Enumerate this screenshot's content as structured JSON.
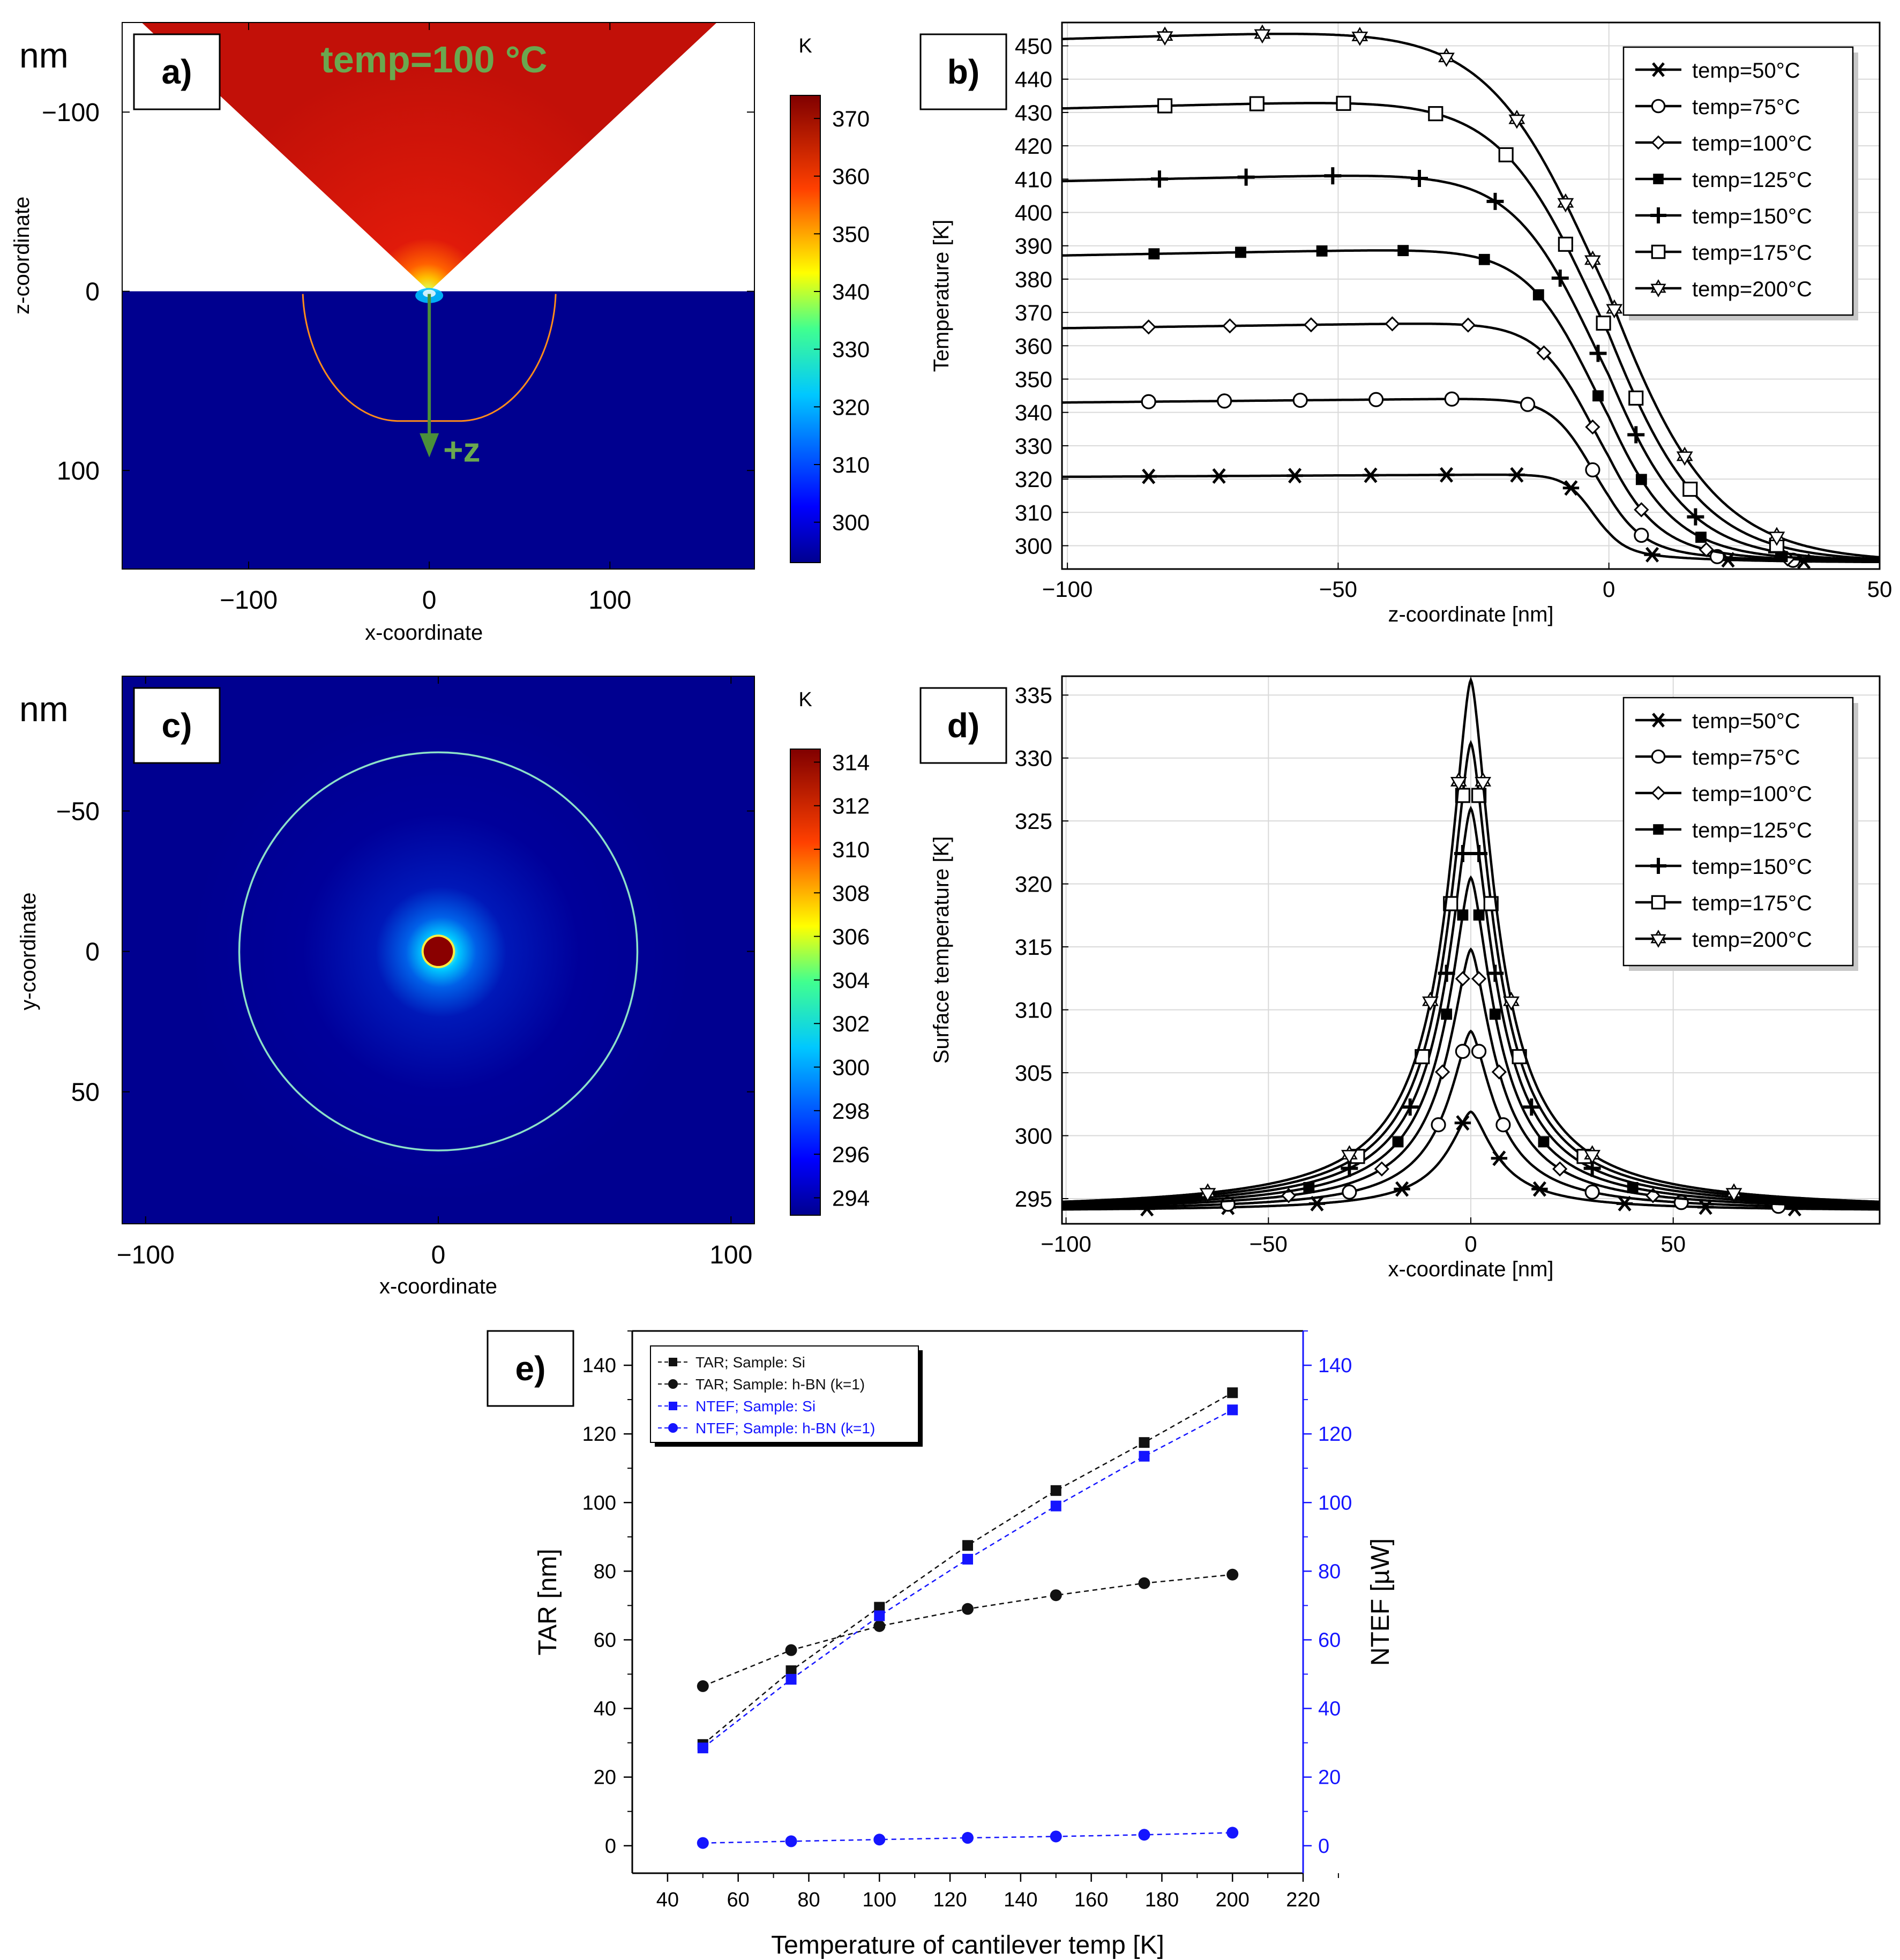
{
  "chart_data": [
    {
      "id": "a",
      "type": "heatmap",
      "panel_label": "a)",
      "unit_label": "nm",
      "annotation": "temp=100 °C",
      "arrow_label": "+z",
      "xlabel": "x-coordinate",
      "ylabel": "z-coordinate",
      "xlim": [
        -170,
        180
      ],
      "ylim": [
        -150,
        155
      ],
      "x_ticks": [
        -100,
        0,
        100
      ],
      "y_ticks": [
        -100,
        0,
        100
      ],
      "colorbar": {
        "unit": "K",
        "range": [
          293,
          374
        ],
        "ticks": [
          300,
          310,
          320,
          330,
          340,
          350,
          360,
          370
        ]
      },
      "contour_halfwidth_nm": 70,
      "contour_depth_nm": 70,
      "colors": {
        "tip": "#c81208",
        "sample": "#00008f",
        "contour": "#ff8c1a",
        "annotation": "#6aa84f",
        "arrow": "#4a8f3a"
      }
    },
    {
      "id": "b",
      "type": "line",
      "panel_label": "b)",
      "xlabel": "z-coordinate [nm]",
      "ylabel": "Temperature [K]",
      "xlim": [
        -101,
        50
      ],
      "ylim": [
        293,
        457
      ],
      "x_ticks": [
        -100,
        -50,
        0,
        50
      ],
      "y_ticks": [
        300,
        310,
        320,
        330,
        340,
        350,
        360,
        370,
        380,
        390,
        400,
        410,
        420,
        430,
        440,
        450
      ],
      "series": [
        {
          "name": "temp=50°C",
          "marker": "asterisk",
          "peak": 321.5,
          "x": [
            -85,
            -72,
            -58,
            -44,
            -30,
            -17,
            -7,
            8,
            22,
            36
          ]
        },
        {
          "name": "temp=75°C",
          "marker": "circle",
          "peak": 344.5,
          "x": [
            -85,
            -71,
            -57,
            -43,
            -29,
            -15,
            -3,
            6,
            20,
            34
          ]
        },
        {
          "name": "temp=100°C",
          "marker": "diamond",
          "peak": 367.5,
          "x": [
            -85,
            -70,
            -55,
            -40,
            -26,
            -12,
            -3,
            6,
            18,
            33
          ]
        },
        {
          "name": "temp=125°C",
          "marker": "square-filled",
          "peak": 390,
          "x": [
            -84,
            -68,
            -53,
            -38,
            -23,
            -13,
            -2,
            6,
            17,
            32
          ]
        },
        {
          "name": "temp=150°C",
          "marker": "plus",
          "peak": 413,
          "x": [
            -83,
            -67,
            -51,
            -35,
            -21,
            -9,
            -2,
            5,
            16,
            31
          ]
        },
        {
          "name": "temp=175°C",
          "marker": "square-open",
          "peak": 435.5,
          "x": [
            -82,
            -65,
            -49,
            -32,
            -19,
            -8,
            -1,
            5,
            15,
            31
          ]
        },
        {
          "name": "temp=200°C",
          "marker": "star",
          "peak": 457,
          "x": [
            -82,
            -64,
            -46,
            -30,
            -17,
            -8,
            -3,
            1,
            14,
            31
          ]
        }
      ],
      "legend_position": "top-right"
    },
    {
      "id": "c",
      "type": "heatmap",
      "panel_label": "c)",
      "unit_label": "nm",
      "xlabel": "x-coordinate",
      "ylabel": "y-coordinate",
      "xlim": [
        -108,
        108
      ],
      "ylim": [
        -98,
        97
      ],
      "x_ticks": [
        -100,
        0,
        100
      ],
      "y_ticks": [
        -50,
        0,
        50
      ],
      "colorbar": {
        "unit": "K",
        "range": [
          293.2,
          314.6
        ],
        "ticks": [
          294,
          296,
          298,
          300,
          302,
          304,
          306,
          308,
          310,
          312,
          314
        ]
      },
      "contour_radius_nm": 68,
      "hotspot_radius_nm": 5,
      "colors": {
        "sample": "#00008f",
        "contour": "#8ce0c8",
        "hotspot": "#8a0000"
      }
    },
    {
      "id": "d",
      "type": "line",
      "panel_label": "d)",
      "xlabel": "x-coordinate [nm]",
      "ylabel": "Surface temperature [K]",
      "xlim": [
        -101,
        101
      ],
      "ylim": [
        293,
        336.5
      ],
      "x_ticks": [
        -100,
        -50,
        0,
        50
      ],
      "y_ticks": [
        295,
        300,
        305,
        310,
        315,
        320,
        325,
        330,
        335
      ],
      "series": [
        {
          "name": "temp=50°C",
          "marker": "asterisk",
          "peak": 301.9,
          "x": [
            -80,
            -60,
            -38,
            -17,
            -2,
            7,
            17,
            38,
            58,
            80
          ]
        },
        {
          "name": "temp=75°C",
          "marker": "circle",
          "peak": 308.3,
          "x": [
            -60,
            -30,
            -8,
            -2,
            2,
            8,
            30,
            52,
            76
          ]
        },
        {
          "name": "temp=100°C",
          "marker": "diamond",
          "peak": 314.8,
          "x": [
            -45,
            -22,
            -7,
            -2,
            2,
            7,
            22,
            45
          ]
        },
        {
          "name": "temp=125°C",
          "marker": "square-filled",
          "peak": 320.5,
          "x": [
            -40,
            -18,
            -6,
            -2,
            2,
            6,
            18,
            40
          ]
        },
        {
          "name": "temp=150°C",
          "marker": "plus",
          "peak": 326,
          "x": [
            -30,
            -15,
            -6,
            -2,
            2,
            6,
            15,
            30
          ]
        },
        {
          "name": "temp=175°C",
          "marker": "square-open",
          "peak": 331.2,
          "x": [
            -28,
            -12,
            -5,
            -2,
            2,
            5,
            12,
            28
          ]
        },
        {
          "name": "temp=200°C",
          "marker": "star",
          "peak": 336.2,
          "x": [
            -65,
            -30,
            -10,
            -3,
            3,
            10,
            30,
            65
          ]
        }
      ],
      "legend_position": "top-right"
    },
    {
      "id": "e",
      "type": "line",
      "panel_label": "e)",
      "xlabel": "Temperature of cantilever temp [K]",
      "ylabel": "TAR [nm]",
      "ylabel_right": "NTEF [µW]",
      "xlim": [
        30,
        220
      ],
      "ylim": [
        -8,
        150
      ],
      "ylim_right": [
        -8,
        150
      ],
      "x_ticks": [
        40,
        60,
        80,
        100,
        120,
        140,
        160,
        180,
        200,
        220
      ],
      "y_ticks": [
        0,
        20,
        40,
        60,
        80,
        100,
        120,
        140
      ],
      "y_ticks_right": [
        0,
        20,
        40,
        60,
        80,
        100,
        120,
        140
      ],
      "categories": [
        50,
        75,
        100,
        125,
        150,
        175,
        200
      ],
      "series": [
        {
          "name": "TAR; Sample: Si",
          "axis": "left",
          "marker": "square",
          "color": "#111111",
          "values": [
            29.5,
            51,
            69.5,
            87.5,
            103.5,
            117.5,
            132
          ]
        },
        {
          "name": "TAR; Sample: h-BN (k=1)",
          "axis": "left",
          "marker": "circle",
          "color": "#111111",
          "values": [
            46.5,
            57,
            64,
            69,
            73,
            76.5,
            79
          ]
        },
        {
          "name": "NTEF; Sample: Si",
          "axis": "right",
          "marker": "square",
          "color": "#1515ff",
          "values": [
            28.5,
            48.5,
            67,
            83.5,
            99,
            113.5,
            127
          ]
        },
        {
          "name": "NTEF; Sample: h-BN (k=1)",
          "axis": "right",
          "marker": "circle",
          "color": "#1515ff",
          "values": [
            0.8,
            1.3,
            1.8,
            2.3,
            2.7,
            3.2,
            3.8
          ]
        }
      ],
      "legend_position": "top-left"
    }
  ]
}
